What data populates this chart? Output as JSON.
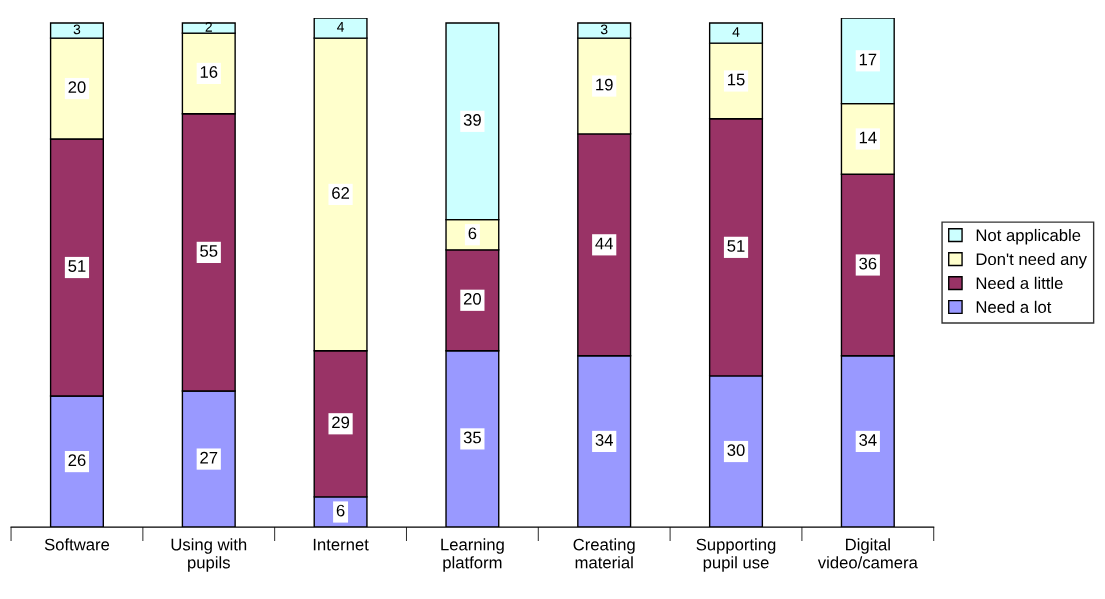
{
  "chart_data": {
    "type": "bar",
    "stacked": true,
    "data_labels": true,
    "legend": "right",
    "grid": false,
    "categories": [
      "Software",
      "Using with\npupils",
      "Internet",
      "Learning\nplatform",
      "Creating\nmaterial",
      "Supporting\npupil use",
      "Digital\nvideo/camera"
    ],
    "series": [
      {
        "name": "Need a lot",
        "color": "#9999ff",
        "values": [
          26,
          27,
          6,
          35,
          34,
          30,
          34
        ]
      },
      {
        "name": "Need a little",
        "color": "#993366",
        "values": [
          51,
          55,
          29,
          20,
          44,
          51,
          36
        ]
      },
      {
        "name": "Don't need any",
        "color": "#ffffcc",
        "values": [
          20,
          16,
          62,
          6,
          19,
          15,
          14
        ]
      },
      {
        "name": "Not applicable",
        "color": "#ccffff",
        "values": [
          3,
          2,
          4,
          39,
          3,
          4,
          17
        ]
      }
    ]
  }
}
